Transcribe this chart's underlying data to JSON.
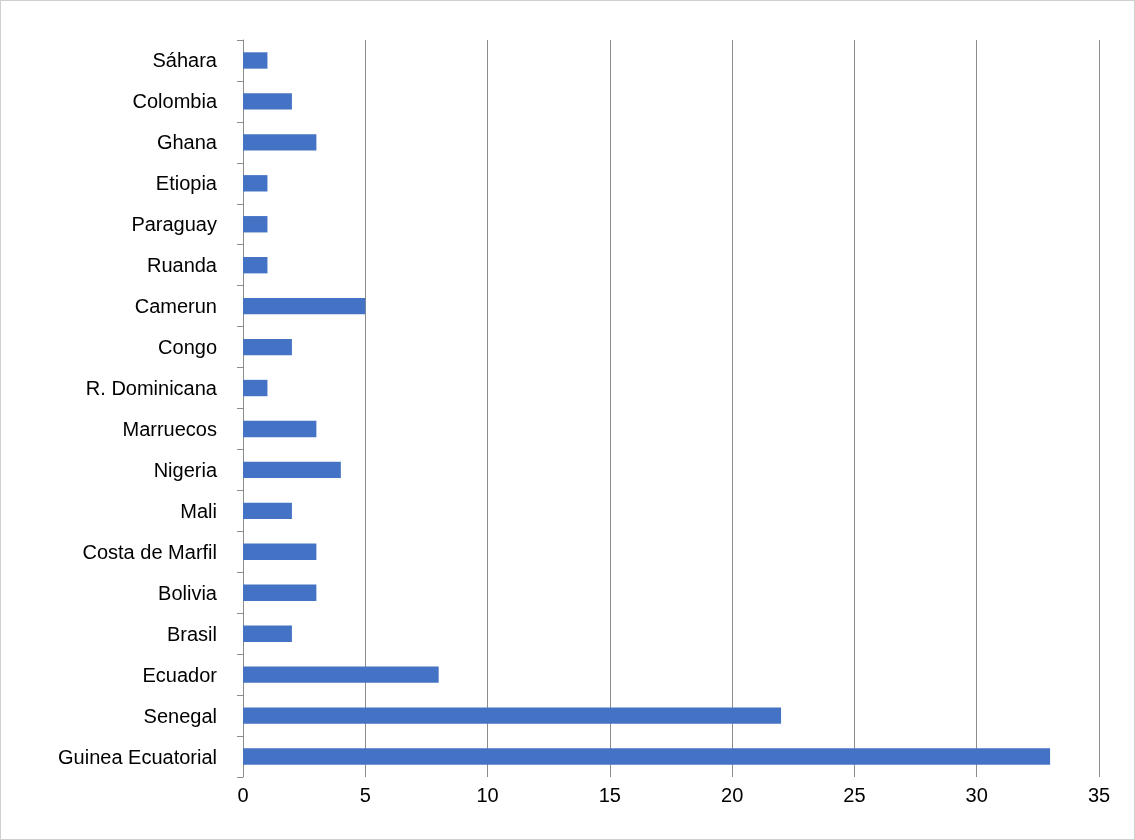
{
  "chart_data": {
    "type": "bar",
    "orientation": "horizontal",
    "categories": [
      "Sáhara",
      "Colombia",
      "Ghana",
      "Etiopia",
      "Paraguay",
      "Ruanda",
      "Camerun",
      "Congo",
      "R. Dominicana",
      "Marruecos",
      "Nigeria",
      "Mali",
      "Costa de Marfil",
      "Bolivia",
      "Brasil",
      "Ecuador",
      "Senegal",
      "Guinea Ecuatorial"
    ],
    "values": [
      1,
      2,
      3,
      1,
      1,
      1,
      5,
      2,
      1,
      3,
      4,
      2,
      3,
      3,
      2,
      8,
      22,
      33
    ],
    "color": "#4472c4",
    "xlim": [
      0,
      35
    ],
    "xticks": [
      0,
      5,
      10,
      15,
      20,
      25,
      30,
      35
    ],
    "grid": "x"
  }
}
